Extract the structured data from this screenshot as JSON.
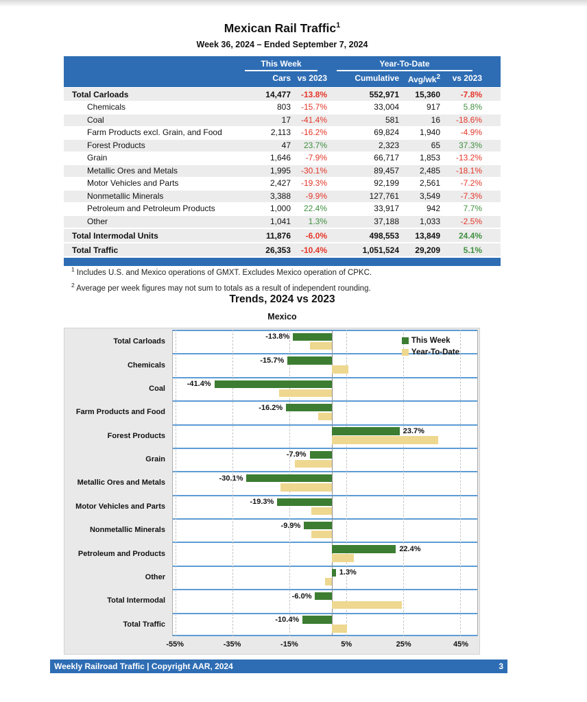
{
  "page": {
    "title": "Mexican Rail Traffic",
    "title_sup": "1",
    "subtitle": "Week 36, 2024 – Ended September 7, 2024",
    "footer": {
      "left": "Weekly Railroad Traffic | Copyright AAR, 2024",
      "page_number": "3"
    }
  },
  "colors": {
    "header_blue": "#2e6db4",
    "negative_red": "#e53528",
    "positive_green": "#3f8f3f",
    "bar_green": "#3c7d32",
    "bar_tan": "#eed78f",
    "band_line_blue": "#5b9bd5",
    "row_stripe_gray": "#ececec",
    "chart_bg_gray": "#e9e9e9"
  },
  "table": {
    "group_headers": [
      {
        "label": "This Week"
      },
      {
        "label": "Year-To-Date"
      }
    ],
    "col_headers": {
      "cars": "Cars",
      "vs_week": "vs 2023",
      "cumulative": "Cumulative",
      "avgwk": "Avg/wk",
      "avgwk_sup": "2",
      "vs_ytd": "vs 2023"
    },
    "rows": [
      {
        "label": "Total Carloads",
        "total": true,
        "cars": "14,477",
        "vs_week": "-13.8%",
        "cumulative": "552,971",
        "avgwk": "15,360",
        "vs_ytd": "-7.8%"
      },
      {
        "label": "Chemicals",
        "total": false,
        "cars": "803",
        "vs_week": "-15.7%",
        "cumulative": "33,004",
        "avgwk": "917",
        "vs_ytd": "5.8%"
      },
      {
        "label": "Coal",
        "total": false,
        "cars": "17",
        "vs_week": "-41.4%",
        "cumulative": "581",
        "avgwk": "16",
        "vs_ytd": "-18.6%"
      },
      {
        "label": "Farm Products excl. Grain, and Food",
        "total": false,
        "cars": "2,113",
        "vs_week": "-16.2%",
        "cumulative": "69,824",
        "avgwk": "1,940",
        "vs_ytd": "-4.9%"
      },
      {
        "label": "Forest Products",
        "total": false,
        "cars": "47",
        "vs_week": "23.7%",
        "cumulative": "2,323",
        "avgwk": "65",
        "vs_ytd": "37.3%"
      },
      {
        "label": "Grain",
        "total": false,
        "cars": "1,646",
        "vs_week": "-7.9%",
        "cumulative": "66,717",
        "avgwk": "1,853",
        "vs_ytd": "-13.2%"
      },
      {
        "label": "Metallic Ores and Metals",
        "total": false,
        "cars": "1,995",
        "vs_week": "-30.1%",
        "cumulative": "89,457",
        "avgwk": "2,485",
        "vs_ytd": "-18.1%"
      },
      {
        "label": "Motor Vehicles and Parts",
        "total": false,
        "cars": "2,427",
        "vs_week": "-19.3%",
        "cumulative": "92,199",
        "avgwk": "2,561",
        "vs_ytd": "-7.2%"
      },
      {
        "label": "Nonmetallic Minerals",
        "total": false,
        "cars": "3,388",
        "vs_week": "-9.9%",
        "cumulative": "127,761",
        "avgwk": "3,549",
        "vs_ytd": "-7.3%"
      },
      {
        "label": "Petroleum and Petroleum Products",
        "total": false,
        "cars": "1,000",
        "vs_week": "22.4%",
        "cumulative": "33,917",
        "avgwk": "942",
        "vs_ytd": "7.7%"
      },
      {
        "label": "Other",
        "total": false,
        "cars": "1,041",
        "vs_week": "1.3%",
        "cumulative": "37,188",
        "avgwk": "1,033",
        "vs_ytd": "-2.5%"
      },
      {
        "label": "Total Intermodal Units",
        "total": true,
        "cars": "11,876",
        "vs_week": "-6.0%",
        "cumulative": "498,553",
        "avgwk": "13,849",
        "vs_ytd": "24.4%"
      },
      {
        "label": "Total Traffic",
        "total": true,
        "cars": "26,353",
        "vs_week": "-10.4%",
        "cumulative": "1,051,524",
        "avgwk": "29,209",
        "vs_ytd": "5.1%"
      }
    ]
  },
  "footnotes": [
    {
      "sup": "1",
      "text": "Includes U.S. and Mexico operations of GMXT. Excludes Mexico operation of CPKC."
    },
    {
      "sup": "2",
      "text": "Average per week figures may not sum to totals as a result of independent rounding."
    }
  ],
  "chart": {
    "title": "Trends, 2024 vs 2023",
    "subtitle": "Mexico"
  },
  "chart_data": {
    "type": "bar",
    "orientation": "horizontal",
    "title": "Trends, 2024 vs 2023",
    "subtitle": "Mexico",
    "legend_position": "top-right-inside",
    "grid": "dashed-vertical",
    "categories": [
      "Total Carloads",
      "Chemicals",
      "Coal",
      "Farm Products and Food",
      "Forest Products",
      "Grain",
      "Metallic Ores and Metals",
      "Motor Vehicles and Parts",
      "Nonmetallic Minerals",
      "Petroleum and Products",
      "Other",
      "Total Intermodal",
      "Total Traffic"
    ],
    "series": [
      {
        "name": "This Week",
        "color": "#3c7d32",
        "values": [
          -13.8,
          -15.7,
          -41.4,
          -16.2,
          23.7,
          -7.9,
          -30.1,
          -19.3,
          -9.9,
          22.4,
          1.3,
          -6.0,
          -10.4
        ]
      },
      {
        "name": "Year-To-Date",
        "color": "#eed78f",
        "values": [
          -7.8,
          5.8,
          -18.6,
          -4.9,
          37.3,
          -13.2,
          -18.1,
          -7.2,
          -7.3,
          7.7,
          -2.5,
          24.4,
          5.1
        ]
      }
    ],
    "data_labels_series": "This Week",
    "xtick_labels": [
      "-55%",
      "-35%",
      "-15%",
      "5%",
      "25%",
      "45%"
    ],
    "xtick_values": [
      -55,
      -35,
      -15,
      5,
      25,
      45
    ],
    "xlim": [
      -56,
      51
    ]
  }
}
